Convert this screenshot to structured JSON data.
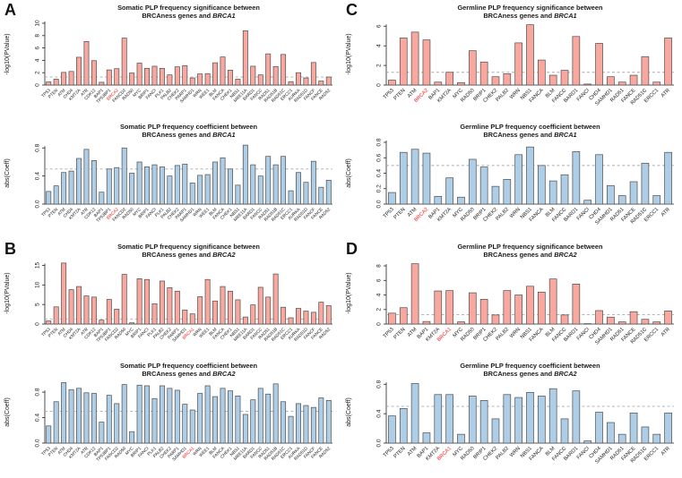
{
  "figure": {
    "panels": [
      {
        "letter": "A"
      },
      {
        "letter": "B"
      },
      {
        "letter": "C"
      },
      {
        "letter": "D"
      }
    ]
  },
  "colors": {
    "sig_bar_fill": "#F9A8A0",
    "coef_bar_fill": "#AECDE6",
    "bar_border": "#4D4D4D",
    "threshold_line": "#ABABAB",
    "highlight_label": "#FF1F1F",
    "text": "#1A1A1A"
  },
  "chart_data": [
    {
      "type": "bar",
      "panel": "A",
      "slot": "top",
      "title_line1": "Somatic PLP frequency significance between",
      "title_line2_prefix": "BRCAness genes and ",
      "title_gene": "BRCA1",
      "ylabel": "-log10(PValue)",
      "ylim": [
        0,
        10
      ],
      "yticks": [
        0,
        2,
        4,
        6,
        8,
        10
      ],
      "threshold": 1.3,
      "bar_color_key": "sig_bar_fill",
      "highlight": "BRCA2",
      "label_font": 4.8,
      "categories": [
        "TP53",
        "PTEN",
        "ATM",
        "CHD4",
        "KMT2A",
        "ATR",
        "CDK12",
        "BAP1",
        "TP53BP1",
        "BRCA2",
        "FANCD2",
        "RAD50",
        "MYC",
        "BRIP1",
        "FANCI",
        "PLK1",
        "PALB2",
        "CHEK2",
        "PARP1",
        "SAMHD1",
        "WRN",
        "WEE1",
        "BLM",
        "FANCA",
        "CHEK1",
        "NBS1",
        "MRE11A",
        "BARD1",
        "FANCC",
        "RAD51",
        "RAD51B",
        "RAD51C",
        "ERCC1",
        "AURKA",
        "RAD51D",
        "FANCF",
        "FANCE",
        "RAD52"
      ],
      "values": [
        0.5,
        0.95,
        2.05,
        2.2,
        4.5,
        7.05,
        3.95,
        0.45,
        2.45,
        2.65,
        7.6,
        1.95,
        3.55,
        2.7,
        3.05,
        2.7,
        1.65,
        2.95,
        3.15,
        1.15,
        1.8,
        1.85,
        3.6,
        4.55,
        2.4,
        0.95,
        8.8,
        3.05,
        1.65,
        5.05,
        3.0,
        4.95,
        0.55,
        2.0,
        1.15,
        3.65,
        0.65,
        1.3
      ]
    },
    {
      "type": "bar",
      "panel": "A",
      "slot": "bottom",
      "title_line1": "Somatic PLP frequency coefficient between",
      "title_line2_prefix": "BRCAness genes and ",
      "title_gene": "BRCA1",
      "ylabel": "abs(Coeff)",
      "ylim": [
        0,
        0.88
      ],
      "yticks": [
        0.0,
        0.4,
        0.8
      ],
      "threshold": 0.5,
      "bar_color_key": "coef_bar_fill",
      "highlight": "BRCA2",
      "label_font": 4.8,
      "categories": [
        "TP53",
        "PTEN",
        "ATM",
        "CHD4",
        "KMT2A",
        "ATR",
        "CDK12",
        "BAP1",
        "TP53BP1",
        "BRCA2",
        "FANCD2",
        "RAD50",
        "MYC",
        "BRIP1",
        "FANCI",
        "PLK1",
        "PALB2",
        "CHEK2",
        "PARP1",
        "SAMHD1",
        "WRN",
        "WEE1",
        "BLM",
        "FANCA",
        "CHEK1",
        "NBS1",
        "MRE11A",
        "BARD1",
        "FANCC",
        "RAD51",
        "RAD51B",
        "RAD51C",
        "ERCC1",
        "AURKA",
        "RAD51D",
        "FANCF",
        "FANCE",
        "RAD52"
      ],
      "values": [
        0.18,
        0.26,
        0.45,
        0.47,
        0.65,
        0.78,
        0.62,
        0.17,
        0.5,
        0.52,
        0.8,
        0.44,
        0.6,
        0.53,
        0.56,
        0.53,
        0.4,
        0.55,
        0.57,
        0.3,
        0.41,
        0.42,
        0.6,
        0.66,
        0.5,
        0.27,
        0.84,
        0.56,
        0.4,
        0.68,
        0.56,
        0.68,
        0.19,
        0.45,
        0.31,
        0.61,
        0.24,
        0.34
      ]
    },
    {
      "type": "bar",
      "panel": "B",
      "slot": "top",
      "title_line1": "Somatic PLP frequency significance between",
      "title_line2_prefix": "BRCAness genes and ",
      "title_gene": "BRCA2",
      "ylabel": "-log10(PValue)",
      "ylim": [
        0,
        15.8
      ],
      "yticks": [
        0,
        5,
        10,
        15
      ],
      "threshold": 1.3,
      "bar_color_key": "sig_bar_fill",
      "highlight": "BRCA1",
      "label_font": 4.8,
      "categories": [
        "TP53",
        "PTEN",
        "ATM",
        "CHD4",
        "KMT2A",
        "ATR",
        "CDK12",
        "BAP1",
        "TP53BP1",
        "FANCD2",
        "RAD50",
        "MYC",
        "BRIP1",
        "FANCI",
        "PLK1",
        "PALB2",
        "CHEK2",
        "PARP1",
        "SAMHD1",
        "BRCA1",
        "WRN",
        "WEE1",
        "BLM",
        "FANCA",
        "CHEK1",
        "NBS1",
        "MRE11A",
        "BARD1",
        "FANCC",
        "RAD51",
        "RAD51B",
        "RAD51C",
        "ERCC1",
        "AURKA",
        "RAD51D",
        "FANCF",
        "FANCE",
        "RAD52"
      ],
      "values": [
        0.8,
        4.4,
        15.6,
        8.8,
        9.6,
        7.2,
        6.9,
        1.0,
        6.3,
        3.8,
        12.7,
        0.3,
        11.6,
        11.4,
        5.2,
        11.0,
        9.3,
        8.4,
        3.6,
        2.6,
        7.0,
        11.4,
        5.9,
        9.6,
        8.4,
        6.2,
        1.8,
        4.9,
        9.4,
        6.9,
        12.8,
        4.3,
        1.6,
        4.0,
        3.3,
        3.0,
        5.6,
        4.7
      ]
    },
    {
      "type": "bar",
      "panel": "B",
      "slot": "bottom",
      "title_line1": "Somatic PLP frequency coefficient between",
      "title_line2_prefix": "BRCAness genes and ",
      "title_gene": "BRCA2",
      "ylabel": "abs(Coeff)",
      "ylim": [
        0,
        0.97
      ],
      "yticks": [
        0.0,
        0.4,
        0.8
      ],
      "threshold": 0.5,
      "bar_color_key": "coef_bar_fill",
      "highlight": "BRCA1",
      "label_font": 4.8,
      "categories": [
        "TP53",
        "PTEN",
        "ATM",
        "CHD4",
        "KMT2A",
        "ATR",
        "CDK12",
        "BAP1",
        "TP53BP1",
        "FANCD2",
        "RAD50",
        "MYC",
        "BRIP1",
        "FANCI",
        "PLK1",
        "PALB2",
        "CHEK2",
        "PARP1",
        "SAMHD1",
        "BRCA1",
        "WRN",
        "WEE1",
        "BLM",
        "FANCA",
        "CHEK1",
        "NBS1",
        "MRE11A",
        "BARD1",
        "FANCC",
        "RAD51",
        "RAD51B",
        "RAD51C",
        "ERCC1",
        "AURKA",
        "RAD51D",
        "FANCF",
        "FANCE",
        "RAD52"
      ],
      "values": [
        0.27,
        0.65,
        0.95,
        0.84,
        0.86,
        0.79,
        0.78,
        0.33,
        0.75,
        0.62,
        0.92,
        0.18,
        0.91,
        0.9,
        0.7,
        0.9,
        0.86,
        0.83,
        0.61,
        0.52,
        0.78,
        0.9,
        0.73,
        0.86,
        0.82,
        0.74,
        0.45,
        0.68,
        0.86,
        0.77,
        0.93,
        0.65,
        0.42,
        0.62,
        0.59,
        0.56,
        0.71,
        0.67
      ]
    },
    {
      "type": "bar",
      "panel": "C",
      "slot": "top",
      "title_line1": "Germline PLP frequency significance between",
      "title_line2_prefix": "BRCAness genes and ",
      "title_gene": "BRCA1",
      "ylabel": "-log10(PValue)",
      "ylim": [
        0,
        6.3
      ],
      "yticks": [
        0,
        2,
        4,
        6
      ],
      "threshold": 1.3,
      "bar_color_key": "sig_bar_fill",
      "highlight": "BRCA2",
      "label_font": 5.8,
      "categories": [
        "TP53",
        "PTEN",
        "ATM",
        "BRCA2",
        "BAP1",
        "KMT2A",
        "MYC",
        "RAD50",
        "BRIP1",
        "CHEK2",
        "PALB2",
        "WRN",
        "NBS1",
        "FANCA",
        "BLM",
        "FANCC",
        "BARD1",
        "FANCI",
        "CHD4",
        "SAMHD1",
        "RAD51",
        "FANCE",
        "RAD51C",
        "ERCC1",
        "ATR"
      ],
      "values": [
        0.5,
        4.8,
        5.4,
        4.6,
        0.3,
        1.3,
        0.25,
        3.5,
        2.35,
        0.85,
        1.15,
        4.3,
        6.15,
        2.55,
        1.0,
        1.5,
        4.95,
        0.1,
        4.25,
        0.85,
        0.3,
        1.0,
        2.9,
        0.3,
        4.8
      ]
    },
    {
      "type": "bar",
      "panel": "C",
      "slot": "bottom",
      "title_line1": "Germline PLP frequency coefficient between",
      "title_line2_prefix": "BRCAness genes and ",
      "title_gene": "BRCA1",
      "ylabel": "abs(Coeff)",
      "ylim": [
        0,
        0.8
      ],
      "yticks": [
        0.0,
        0.2,
        0.4,
        0.6,
        0.8
      ],
      "threshold": 0.5,
      "bar_color_key": "coef_bar_fill",
      "highlight": "BRCA2",
      "label_font": 5.8,
      "categories": [
        "TP53",
        "PTEN",
        "ATM",
        "BRCA2",
        "BAP1",
        "KMT2A",
        "MYC",
        "RAD50",
        "BRIP1",
        "CHEK2",
        "PALB2",
        "WRN",
        "NBS1",
        "FANCA",
        "BLM",
        "FANCC",
        "BARD1",
        "FANCI",
        "CHD4",
        "SAMHD1",
        "RAD51",
        "FANCE",
        "RAD51C",
        "ERCC1",
        "ATR"
      ],
      "values": [
        0.15,
        0.67,
        0.71,
        0.66,
        0.1,
        0.34,
        0.09,
        0.58,
        0.48,
        0.23,
        0.32,
        0.64,
        0.74,
        0.5,
        0.3,
        0.38,
        0.68,
        0.05,
        0.64,
        0.24,
        0.11,
        0.29,
        0.53,
        0.11,
        0.67
      ]
    },
    {
      "type": "bar",
      "panel": "D",
      "slot": "top",
      "title_line1": "Germline PLP frequency significance between",
      "title_line2_prefix": "BRCAness genes and ",
      "title_gene": "BRCA2",
      "ylabel": "-log10(PValue)",
      "ylim": [
        0,
        8.5
      ],
      "yticks": [
        0,
        2,
        4,
        6,
        8
      ],
      "threshold": 1.3,
      "bar_color_key": "sig_bar_fill",
      "highlight": "BRCA1",
      "label_font": 5.8,
      "categories": [
        "TP53",
        "PTEN",
        "ATM",
        "BAP1",
        "KMT2A",
        "BRCA1",
        "MYC",
        "RAD50",
        "BRIP1",
        "CHEK2",
        "PALB2",
        "WRN",
        "NBS1",
        "FANCA",
        "BLM",
        "FANCC",
        "BARD1",
        "FANCI",
        "CHD4",
        "SAMHD1",
        "RAD51",
        "FANCE",
        "RAD51C",
        "ERCC1",
        "ATR"
      ],
      "values": [
        1.5,
        2.25,
        8.3,
        0.35,
        4.55,
        4.6,
        0.3,
        4.3,
        3.4,
        1.25,
        4.6,
        4.0,
        5.2,
        4.4,
        6.2,
        1.25,
        5.5,
        0.05,
        1.85,
        0.95,
        0.3,
        1.7,
        0.65,
        0.3,
        1.8
      ]
    },
    {
      "type": "bar",
      "panel": "D",
      "slot": "bottom",
      "title_line1": "Germline PLP frequency coefficient between",
      "title_line2_prefix": "BRCAness genes and ",
      "title_gene": "BRCA2",
      "ylabel": "abs(Coeff)",
      "ylim": [
        0,
        0.84
      ],
      "yticks": [
        0.0,
        0.4,
        0.8
      ],
      "threshold": 0.5,
      "bar_color_key": "coef_bar_fill",
      "highlight": "BRCA1",
      "label_font": 5.8,
      "categories": [
        "TP53",
        "PTEN",
        "ATM",
        "BAP1",
        "KMT2A",
        "BRCA1",
        "MYC",
        "RAD50",
        "BRIP1",
        "CHEK2",
        "PALB2",
        "WRN",
        "NBS1",
        "FANCA",
        "BLM",
        "FANCC",
        "BARD1",
        "FANCI",
        "CHD4",
        "SAMHD1",
        "RAD51",
        "FANCE",
        "RAD51C",
        "ERCC1",
        "ATR"
      ],
      "values": [
        0.37,
        0.47,
        0.81,
        0.14,
        0.66,
        0.66,
        0.12,
        0.64,
        0.58,
        0.33,
        0.66,
        0.62,
        0.69,
        0.64,
        0.74,
        0.33,
        0.71,
        0.03,
        0.42,
        0.28,
        0.12,
        0.41,
        0.22,
        0.12,
        0.41
      ]
    }
  ]
}
